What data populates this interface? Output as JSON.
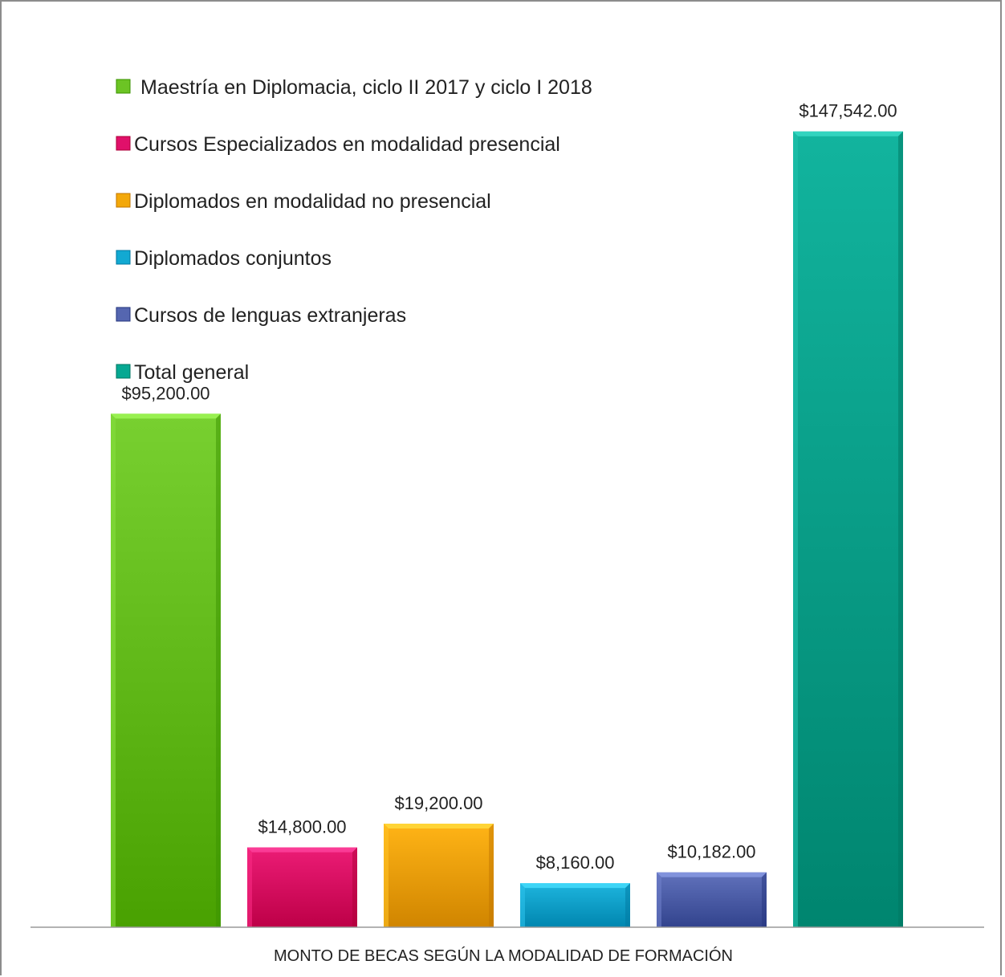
{
  "chart_data": {
    "type": "bar",
    "title": "",
    "xlabel": "MONTO DE BECAS SEGÚN LA MODALIDAD DE FORMACIÓN",
    "ylabel": "",
    "ylim": [
      0,
      160000
    ],
    "grid": false,
    "legend_position": "top-left",
    "categories": [
      "Maestría en Diplomacia, ciclo II 2017 y ciclo I 2018",
      "Cursos Especializados en modalidad presencial",
      "Diplomados en modalidad no presencial",
      "Diplomados conjuntos",
      "Cursos de lenguas extranjeras",
      "Total general"
    ],
    "values": [
      95200,
      14800,
      19200,
      8160,
      10182,
      147542
    ],
    "data_labels": [
      "$95,200.00",
      "$14,800.00",
      "$19,200.00",
      "$8,160.00",
      "$10,182.00",
      "$147,542.00"
    ],
    "colors": [
      "#6cc424",
      "#e0106a",
      "#f3a80a",
      "#12a9d2",
      "#5566b0",
      "#06a892"
    ]
  }
}
